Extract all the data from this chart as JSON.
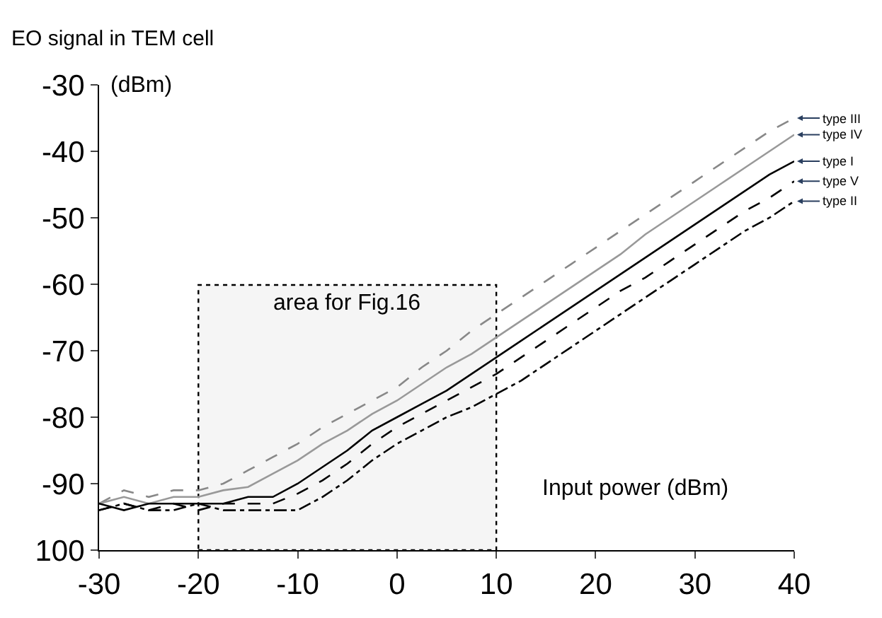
{
  "chart_data": {
    "type": "line",
    "xlabel": "Input power (dBm)",
    "ylabel": "EO signal in TEM cell\n(dBm)",
    "x": [
      -30,
      -27.5,
      -25,
      -22.5,
      -20,
      -17.5,
      -15,
      -12.5,
      -10,
      -7.5,
      -5,
      -2.5,
      0,
      2.5,
      5,
      7.5,
      10,
      12.5,
      15,
      17.5,
      20,
      22.5,
      25,
      27.5,
      30,
      32.5,
      35,
      37.5,
      40
    ],
    "series": [
      {
        "name": "type III",
        "color": "#888888",
        "line_style": "dashed",
        "values": [
          -93,
          -91,
          -92,
          -91,
          -91,
          -90,
          -88,
          -86,
          -84,
          -81.5,
          -79.5,
          -77.5,
          -75.5,
          -72.5,
          -70,
          -67,
          -64.5,
          -62,
          -59.5,
          -57,
          -54.5,
          -52,
          -49.5,
          -47,
          -44.5,
          -42,
          -39.5,
          -37,
          -35
        ]
      },
      {
        "name": "type IV",
        "color": "#999999",
        "line_style": "solid",
        "values": [
          -93,
          -92,
          -93,
          -92,
          -92,
          -91,
          -90.5,
          -88.5,
          -86.5,
          -84,
          -82,
          -79.5,
          -77.5,
          -75,
          -72.5,
          -70.5,
          -68,
          -65.5,
          -63,
          -60.5,
          -58,
          -55.5,
          -52.5,
          -50,
          -47.5,
          -45,
          -42.5,
          -40,
          -37.5
        ]
      },
      {
        "name": "type I",
        "color": "#000000",
        "line_style": "solid",
        "values": [
          -93,
          -94,
          -93,
          -93,
          -93,
          -93,
          -92,
          -92,
          -90,
          -87.5,
          -85,
          -82,
          -80,
          -78,
          -76,
          -73.5,
          -71,
          -68.5,
          -66,
          -63.5,
          -61,
          -58.5,
          -56,
          -53.5,
          -51,
          -48.5,
          -46,
          -43.5,
          -41.5
        ]
      },
      {
        "name": "type V",
        "color": "#000000",
        "line_style": "dashed",
        "values": [
          -94,
          -93,
          -94,
          -93,
          -94,
          -93,
          -93,
          -93,
          -91.5,
          -89.5,
          -87,
          -84,
          -81.5,
          -79.5,
          -77.5,
          -75.5,
          -73.5,
          -71,
          -68.5,
          -66,
          -63.5,
          -61,
          -59,
          -56.5,
          -54,
          -51.5,
          -49,
          -47,
          -44.5
        ]
      },
      {
        "name": "type II",
        "color": "#000000",
        "line_style": "dashdot",
        "values": [
          -94,
          -93,
          -94,
          -94,
          -93,
          -94,
          -94,
          -94,
          -94,
          -92,
          -89.5,
          -86.5,
          -84,
          -82,
          -80,
          -78.5,
          -76.5,
          -74.5,
          -72,
          -69.5,
          -67,
          -64.5,
          -62,
          -59.5,
          -57,
          -54.5,
          -52,
          -50,
          -47.5
        ]
      }
    ],
    "bands": [
      {
        "axis": "x",
        "from": -20,
        "to": 10,
        "label": "area for Fig.16",
        "color": "#000000"
      }
    ],
    "xlim": [
      -30,
      40
    ],
    "xticks": [
      -30,
      -20,
      -10,
      0,
      10,
      20,
      30,
      40
    ],
    "ylim": [
      -100,
      -30
    ],
    "yticks": [
      {
        "value": -100,
        "label": "100"
      },
      -90,
      -80,
      -70,
      -60,
      -50,
      -40,
      -30
    ],
    "grid": false,
    "legend": false,
    "marker": "none"
  }
}
